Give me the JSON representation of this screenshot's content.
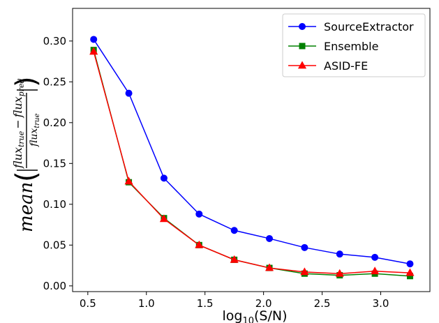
{
  "chart_data": {
    "type": "line",
    "title": "",
    "xlabel": {
      "main": "log",
      "sub": "10",
      "rest": "(S/N)"
    },
    "ylabel": {
      "func": "mean",
      "numerator": {
        "a": "flux",
        "a_sub": "true",
        "minus": "−",
        "b": "flux",
        "b_sub": "pred"
      },
      "denominator": {
        "a": "flux",
        "a_sub": "true"
      }
    },
    "xlim": [
      0.37,
      3.42
    ],
    "ylim": [
      -0.007,
      0.34
    ],
    "xticks": [
      0.5,
      1.0,
      1.5,
      2.0,
      2.5,
      3.0
    ],
    "xtick_labels": [
      "0.5",
      "1.0",
      "1.5",
      "2.0",
      "2.5",
      "3.0"
    ],
    "yticks": [
      0.0,
      0.05,
      0.1,
      0.15,
      0.2,
      0.25,
      0.3
    ],
    "ytick_labels": [
      "0.00",
      "0.05",
      "0.10",
      "0.15",
      "0.20",
      "0.25",
      "0.30"
    ],
    "grid": false,
    "legend_position": "top-right",
    "x": [
      0.55,
      0.85,
      1.15,
      1.45,
      1.75,
      2.05,
      2.35,
      2.65,
      2.95,
      3.25
    ],
    "series": [
      {
        "name": "SourceExtractor",
        "color": "#0000ff",
        "marker": "circle",
        "values": [
          0.302,
          0.236,
          0.132,
          0.088,
          0.068,
          0.058,
          0.047,
          0.039,
          0.035,
          0.027
        ]
      },
      {
        "name": "Ensemble",
        "color": "#008000",
        "marker": "square",
        "values": [
          0.289,
          0.127,
          0.083,
          0.05,
          0.032,
          0.022,
          0.015,
          0.013,
          0.015,
          0.012
        ]
      },
      {
        "name": "ASID-FE",
        "color": "#ff0000",
        "marker": "triangle",
        "values": [
          0.287,
          0.128,
          0.082,
          0.05,
          0.032,
          0.022,
          0.017,
          0.015,
          0.018,
          0.016
        ]
      }
    ]
  }
}
